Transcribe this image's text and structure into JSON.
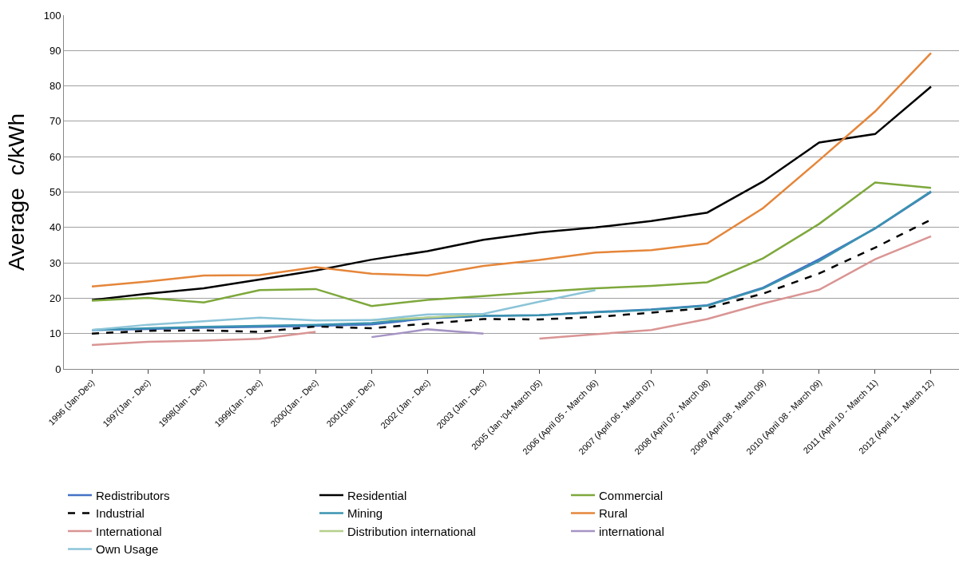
{
  "chart_data": {
    "type": "line",
    "ylabel": "Average  c/kWh",
    "categories": [
      "1996 (Jan-Dec)",
      "1997(Jan - Dec)",
      "1998(Jan - Dec)",
      "1999(Jan - Dec)",
      "2000(Jan - Dec)",
      "2001(Jan - Dec)",
      "2002 (Jan - Dec)",
      "2003 (Jan - Dec)",
      "2005 (Jan '04-March 05)",
      "2006 (April 05 - March 06)",
      "2007 (April 06 - March 07)",
      "2008 (April 07 - March 08)",
      "2009 (April 08 - March 09)",
      "2010 (April 08 - March 09)",
      "2011 (April 10 - March 11)",
      "2012 (April 11 - March 12)"
    ],
    "ylim": [
      0,
      100
    ],
    "yticks": [
      0,
      10,
      20,
      30,
      40,
      50,
      60,
      70,
      80,
      90,
      100
    ],
    "grid": "y",
    "legend": "bottom",
    "marker": "none",
    "series": [
      {
        "name": "Redistributors",
        "color": "#4472c4",
        "values": [
          11,
          11.3,
          11.7,
          11.9,
          12.2,
          12.6,
          14.3,
          15,
          15.2,
          16.1,
          16.8,
          18,
          23,
          31,
          39.7,
          50
        ]
      },
      {
        "name": "Residential",
        "color": "#000000",
        "values": [
          19.5,
          21.3,
          22.8,
          25.3,
          27.8,
          30.9,
          33.3,
          36.5,
          38.6,
          40,
          41.8,
          44.2,
          53,
          64,
          66.4,
          79.8
        ]
      },
      {
        "name": "Commercial",
        "color": "#7ea83c",
        "values": [
          19.3,
          20.1,
          18.8,
          22.3,
          22.6,
          17.8,
          19.5,
          20.6,
          21.8,
          22.8,
          23.5,
          24.5,
          31.3,
          41,
          52.7,
          51.2
        ]
      },
      {
        "name": "Industrial",
        "color": "#000000",
        "line_style": "dashed",
        "values": [
          10,
          10.8,
          10.9,
          10.5,
          12,
          11.5,
          12.8,
          14.1,
          14,
          14.7,
          15.9,
          17.2,
          21.3,
          27,
          34.3,
          42.2
        ]
      },
      {
        "name": "Mining",
        "color": "#3b93b0",
        "values": [
          11,
          11.5,
          11.9,
          12.2,
          12.5,
          13,
          14.5,
          15,
          15.2,
          16,
          16.7,
          17.9,
          22.8,
          30.5,
          39.8,
          50.2
        ]
      },
      {
        "name": "Rural",
        "color": "#e5863a",
        "values": [
          23.3,
          24.7,
          26.4,
          26.5,
          28.8,
          26.9,
          26.4,
          29.1,
          30.8,
          32.9,
          33.6,
          35.5,
          45.5,
          59,
          72.8,
          89.3
        ]
      },
      {
        "name": "International",
        "color": "#d99594",
        "values": [
          6.8,
          7.7,
          8,
          8.5,
          10.5,
          null,
          null,
          null,
          8.6,
          9.8,
          11,
          14.1,
          18.5,
          22.4,
          31,
          37.5
        ]
      },
      {
        "name": "Distribution international",
        "color": "#b5cf8c",
        "values": [
          null,
          null,
          null,
          null,
          null,
          13.8,
          14.5,
          15.5,
          null,
          null,
          null,
          null,
          null,
          null,
          null,
          null
        ]
      },
      {
        "name": "international",
        "color": "#a594c4",
        "values": [
          null,
          null,
          null,
          null,
          null,
          9,
          11.2,
          10,
          null,
          null,
          null,
          null,
          null,
          null,
          null,
          null
        ]
      },
      {
        "name": "Own Usage",
        "color": "#8cc4d8",
        "values": [
          11,
          12.5,
          13.5,
          14.5,
          13.7,
          13.8,
          15.4,
          15.6,
          19,
          22.3,
          null,
          null,
          null,
          null,
          null,
          null
        ]
      }
    ]
  }
}
